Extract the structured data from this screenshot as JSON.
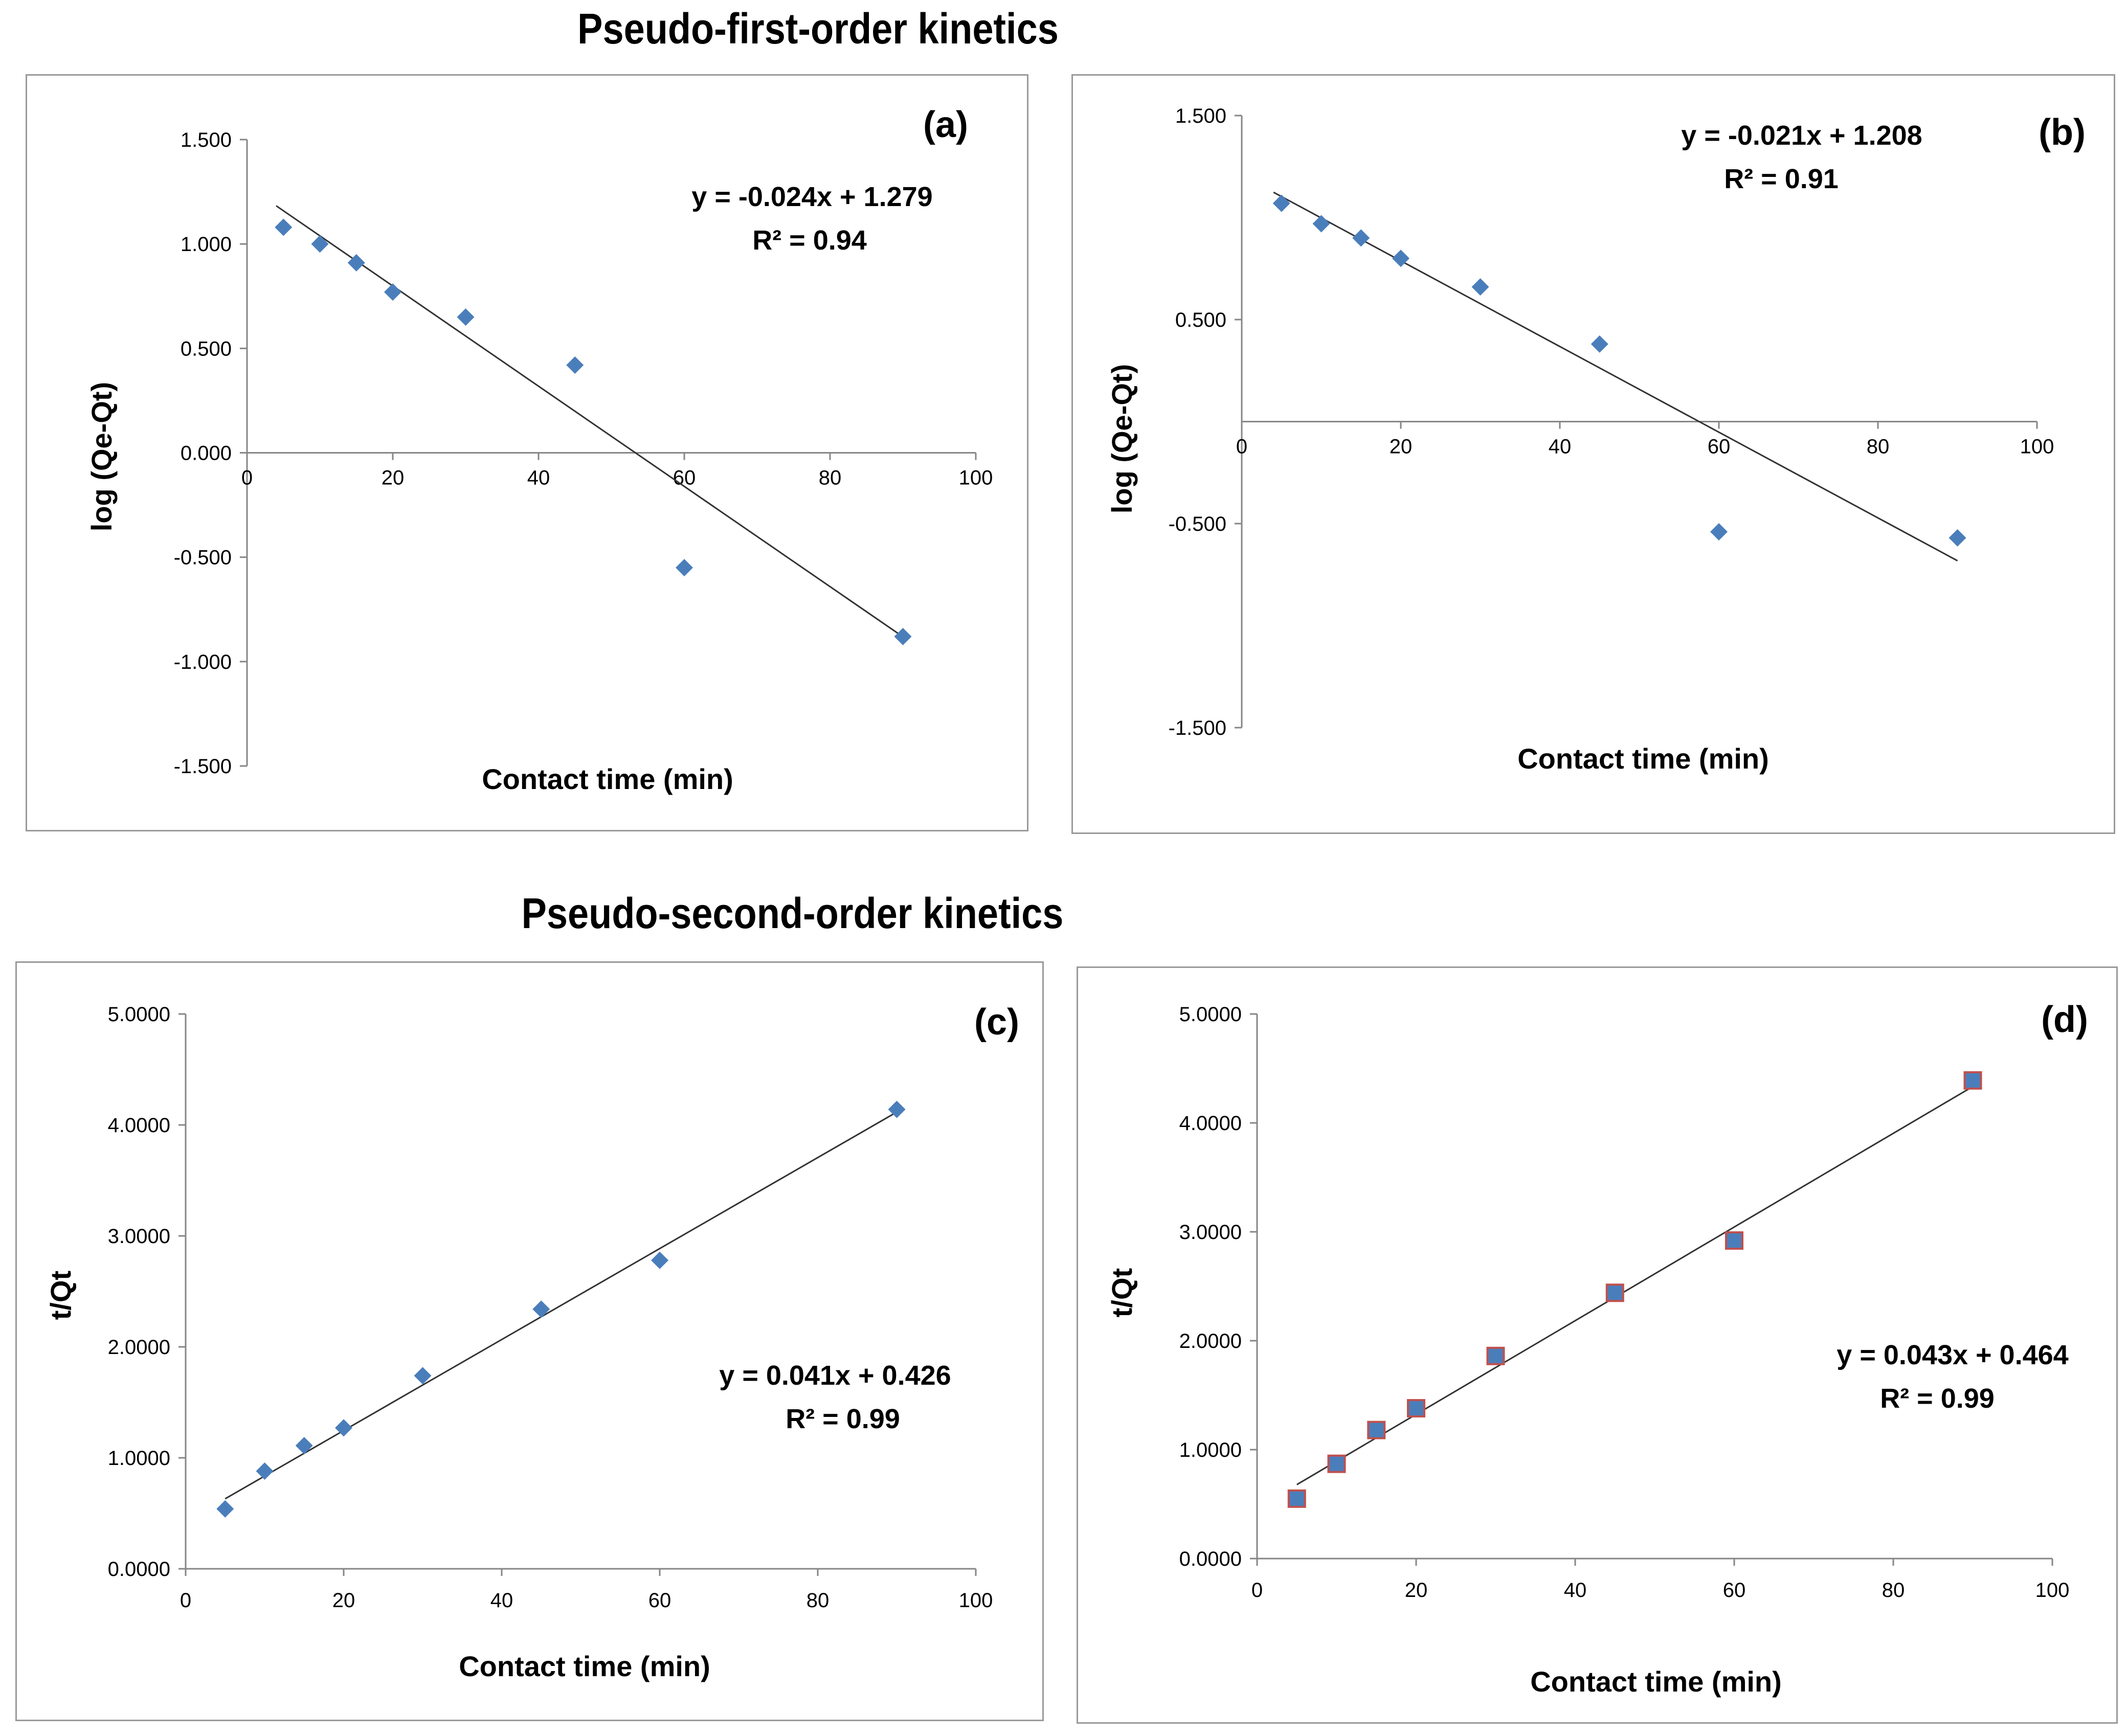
{
  "titles": {
    "first": "Pseudo-first-order kinetics",
    "second": "Pseudo-second-order kinetics"
  },
  "colors": {
    "marker": "#4a7ebb",
    "marker_edge_d": "#c0504d",
    "line": "#333333",
    "axis": "#868686"
  },
  "chart_data": [
    {
      "panel": "(a)",
      "type": "scatter",
      "xlabel": "Contact time (min)",
      "ylabel": "log (Qe-Qt)",
      "xlim": [
        0,
        100
      ],
      "ylim": [
        -1.5,
        1.5
      ],
      "xticks": [
        "0",
        "20",
        "40",
        "60",
        "80",
        "100"
      ],
      "yticks": [
        "-1.500",
        "-1.000",
        "-0.500",
        "0.000",
        "0.500",
        "1.000",
        "1.500"
      ],
      "x": [
        5,
        10,
        15,
        20,
        30,
        45,
        60,
        90
      ],
      "y": [
        1.08,
        1.0,
        0.91,
        0.77,
        0.65,
        0.42,
        -0.55,
        -0.88
      ],
      "trendline": {
        "slope": -0.024,
        "intercept": 1.279,
        "x_range": [
          4,
          90
        ]
      },
      "equation": "y = -0.024x + 1.279",
      "r2": "R² = 0.94",
      "legend": "none",
      "grid": false
    },
    {
      "panel": "(b)",
      "type": "scatter",
      "xlabel": "Contact time (min)",
      "ylabel": "log (Qe-Qt)",
      "xlim": [
        0,
        100
      ],
      "ylim": [
        -1.5,
        1.5
      ],
      "xticks": [
        "0",
        "20",
        "40",
        "60",
        "80",
        "100"
      ],
      "yticks": [
        "-1.500",
        "-0.500",
        "0.500",
        "1.500"
      ],
      "x": [
        5,
        10,
        15,
        20,
        30,
        45,
        60,
        90
      ],
      "y": [
        1.07,
        0.97,
        0.9,
        0.8,
        0.66,
        0.38,
        -0.54,
        -0.57
      ],
      "trendline": {
        "slope": -0.021,
        "intercept": 1.208,
        "x_range": [
          4,
          90
        ]
      },
      "equation": "y = -0.021x + 1.208",
      "r2": "R² = 0.91",
      "legend": "none",
      "grid": false
    },
    {
      "panel": "(c)",
      "type": "scatter",
      "xlabel": "Contact time (min)",
      "ylabel": "t/Qt",
      "xlim": [
        0,
        100
      ],
      "ylim": [
        0,
        5
      ],
      "xticks": [
        "0",
        "20",
        "40",
        "60",
        "80",
        "100"
      ],
      "yticks": [
        "0.0000",
        "1.0000",
        "2.0000",
        "3.0000",
        "4.0000",
        "5.0000"
      ],
      "x": [
        5,
        10,
        15,
        20,
        30,
        45,
        60,
        90
      ],
      "y": [
        0.54,
        0.88,
        1.11,
        1.27,
        1.74,
        2.34,
        2.78,
        4.14
      ],
      "trendline": {
        "slope": 0.041,
        "intercept": 0.426,
        "x_range": [
          5,
          90
        ]
      },
      "equation": "y = 0.041x + 0.426",
      "r2": "R² = 0.99",
      "legend": "none",
      "grid": false
    },
    {
      "panel": "(d)",
      "type": "scatter",
      "xlabel": "Contact time (min)",
      "ylabel": "t/Qt",
      "xlim": [
        0,
        100
      ],
      "ylim": [
        0,
        5
      ],
      "xticks": [
        "0",
        "20",
        "40",
        "60",
        "80",
        "100"
      ],
      "yticks": [
        "0.0000",
        "1.0000",
        "2.0000",
        "3.0000",
        "4.0000",
        "5.0000"
      ],
      "x": [
        5,
        10,
        15,
        20,
        30,
        45,
        60,
        90
      ],
      "y": [
        0.55,
        0.87,
        1.18,
        1.38,
        1.86,
        2.44,
        2.92,
        4.39
      ],
      "trendline": {
        "slope": 0.043,
        "intercept": 0.464,
        "x_range": [
          5,
          90
        ]
      },
      "equation": "y = 0.043x + 0.464",
      "r2": "R² = 0.99",
      "legend": "none",
      "grid": false
    }
  ]
}
